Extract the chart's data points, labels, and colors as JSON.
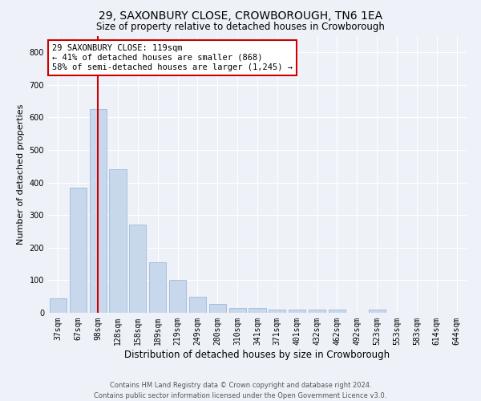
{
  "title": "29, SAXONBURY CLOSE, CROWBOROUGH, TN6 1EA",
  "subtitle": "Size of property relative to detached houses in Crowborough",
  "xlabel": "Distribution of detached houses by size in Crowborough",
  "ylabel": "Number of detached properties",
  "categories": [
    "37sqm",
    "67sqm",
    "98sqm",
    "128sqm",
    "158sqm",
    "189sqm",
    "219sqm",
    "249sqm",
    "280sqm",
    "310sqm",
    "341sqm",
    "371sqm",
    "401sqm",
    "432sqm",
    "462sqm",
    "492sqm",
    "523sqm",
    "553sqm",
    "583sqm",
    "614sqm",
    "644sqm"
  ],
  "values": [
    45,
    385,
    625,
    440,
    270,
    155,
    100,
    50,
    27,
    15,
    15,
    10,
    10,
    10,
    10,
    0,
    10,
    0,
    0,
    0,
    0
  ],
  "bar_color": "#c8d8ec",
  "bar_edgecolor": "#a0b8d8",
  "vline_x": 2,
  "vline_color": "#cc0000",
  "ylim": [
    0,
    850
  ],
  "yticks": [
    0,
    100,
    200,
    300,
    400,
    500,
    600,
    700,
    800
  ],
  "annotation_text": "29 SAXONBURY CLOSE: 119sqm\n← 41% of detached houses are smaller (868)\n58% of semi-detached houses are larger (1,245) →",
  "annotation_box_color": "#ffffff",
  "annotation_box_edgecolor": "#cc0000",
  "footer1": "Contains HM Land Registry data © Crown copyright and database right 2024.",
  "footer2": "Contains public sector information licensed under the Open Government Licence v3.0.",
  "bg_color": "#eef2f8",
  "grid_color": "#ffffff",
  "title_fontsize": 10,
  "subtitle_fontsize": 8.5,
  "axis_label_fontsize": 8,
  "tick_fontsize": 7,
  "footer_fontsize": 6,
  "annotation_fontsize": 7.5
}
